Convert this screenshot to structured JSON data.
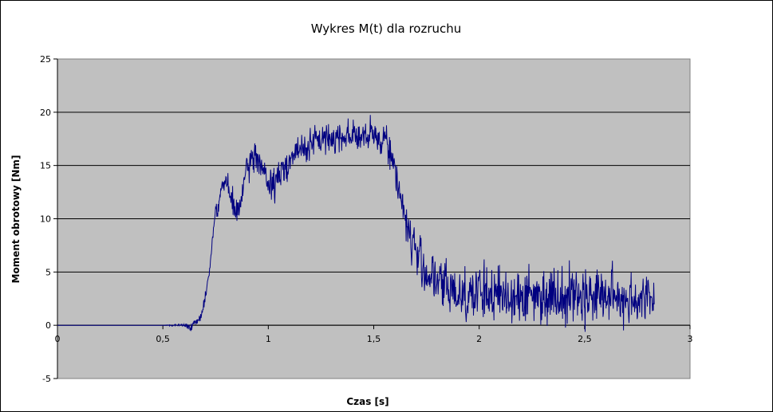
{
  "chart_data": {
    "type": "line",
    "title": "Wykres M(t) dla rozruchu",
    "xlabel": "Czas [s]",
    "ylabel": "Moment obrotowy [Nm]",
    "xlim": [
      0,
      3
    ],
    "ylim": [
      -5,
      25
    ],
    "xticks": [
      "0",
      "0,5",
      "1",
      "1,5",
      "2",
      "2,5",
      "3"
    ],
    "yticks": [
      "-5",
      "0",
      "5",
      "10",
      "15",
      "20",
      "25"
    ],
    "grid": true,
    "legend": "none",
    "plot_background": "#c0c0c0",
    "line_color": "#000080",
    "series": [
      {
        "x": [
          0,
          0.1,
          0.2,
          0.3,
          0.4,
          0.5,
          0.6,
          0.62,
          0.64,
          0.66,
          0.68,
          0.7,
          0.72,
          0.74,
          0.75,
          0.76,
          0.78,
          0.8,
          0.82,
          0.84,
          0.86,
          0.88,
          0.9,
          0.92,
          0.94,
          0.96,
          1.0,
          1.04,
          1.08,
          1.12,
          1.16,
          1.2,
          1.25,
          1.3,
          1.35,
          1.4,
          1.45,
          1.5,
          1.53,
          1.56,
          1.58,
          1.6,
          1.62,
          1.64,
          1.66,
          1.68,
          1.7,
          1.72,
          1.75,
          1.8,
          1.85,
          1.9,
          1.95,
          2.0,
          2.1,
          2.2,
          2.3,
          2.4,
          2.5,
          2.6,
          2.7,
          2.8,
          2.83
        ],
        "y": [
          0,
          0,
          0,
          0,
          0,
          0,
          0,
          -0.1,
          0,
          0.2,
          0.8,
          2.5,
          5,
          9,
          11,
          11,
          13,
          13.5,
          12,
          11,
          10.5,
          13,
          14.5,
          15.5,
          16,
          15.5,
          13,
          13.5,
          15,
          16,
          16.5,
          17,
          17.5,
          17.5,
          17.8,
          18,
          17.5,
          17.8,
          17.5,
          17.8,
          16,
          14.5,
          13,
          11,
          9,
          8,
          7,
          6,
          5,
          4,
          3.5,
          3,
          3,
          3,
          2.8,
          2.8,
          2.8,
          3,
          2.8,
          2.8,
          2.5,
          2.5,
          2.5
        ],
        "amp": [
          0,
          0,
          0,
          0,
          0,
          0,
          0.15,
          0.3,
          0.3,
          0.3,
          0.3,
          0.3,
          0.3,
          0.4,
          0.5,
          0.6,
          0.8,
          0.8,
          0.9,
          0.9,
          0.9,
          1,
          1,
          1.1,
          1.2,
          1.2,
          1.2,
          1.2,
          1.1,
          1.1,
          1.1,
          1.1,
          1.1,
          1.1,
          1.1,
          1.1,
          1.1,
          1.2,
          1.3,
          1.3,
          1.3,
          1.3,
          1.3,
          1.4,
          1.5,
          1.6,
          1.7,
          1.8,
          1.8,
          1.9,
          2,
          2,
          2,
          2,
          2,
          2,
          2,
          2,
          2,
          2,
          1.9,
          1.8,
          1.8
        ]
      }
    ]
  }
}
